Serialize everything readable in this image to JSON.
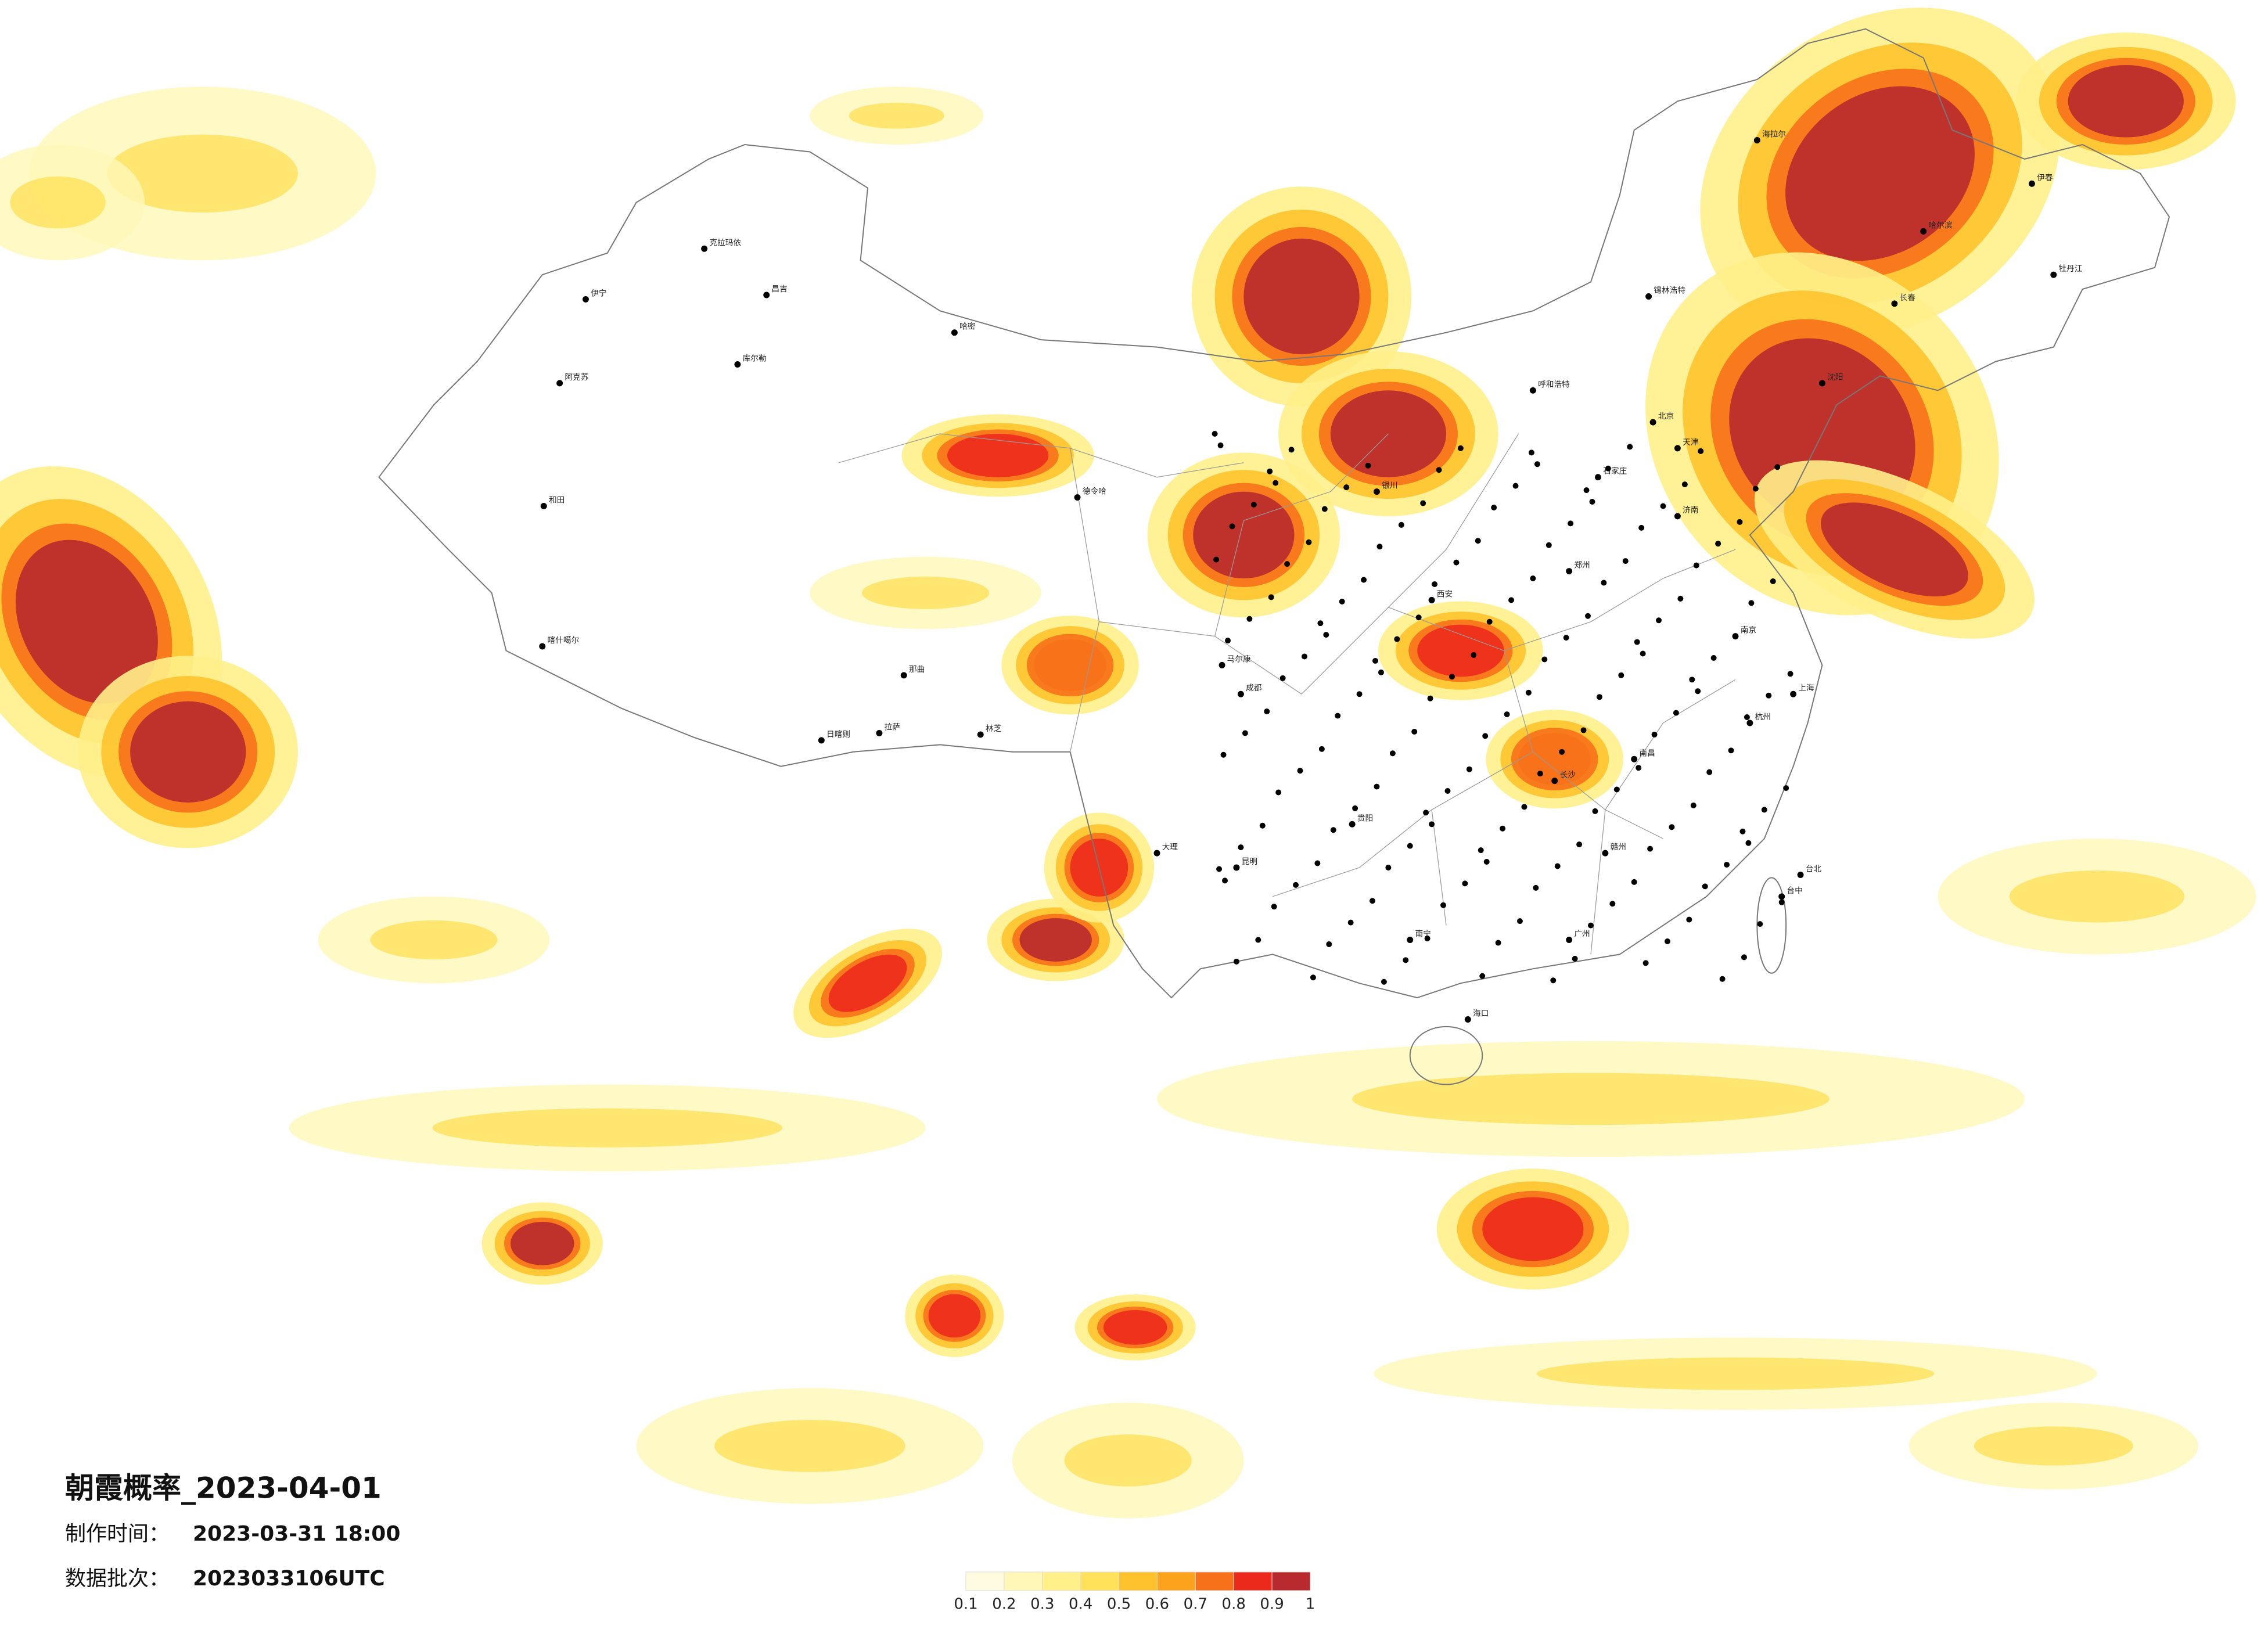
{
  "title": "朝霞概率_2023-04-01",
  "made_time": {
    "label": "制作时间：",
    "value": "2023-03-31 18:00"
  },
  "batch": {
    "label": "数据批次：",
    "value": "2023033106UTC"
  },
  "colorbar": {
    "ticks": [
      0.1,
      0.2,
      0.3,
      0.4,
      0.5,
      0.6,
      0.7,
      0.8,
      0.9,
      1
    ],
    "colors": [
      "#fffbe0",
      "#fff7b8",
      "#fff08a",
      "#ffe15a",
      "#fec32c",
      "#fca21c",
      "#f7711a",
      "#ec2a1c",
      "#b82a2e"
    ]
  },
  "cities": [
    "克拉玛依",
    "伊宁",
    "阿克苏",
    "和田",
    "喀什噶尔",
    "哈密",
    "昌吉",
    "库尔勒",
    "拉萨",
    "日喀则",
    "林芝",
    "那曲",
    "德令哈",
    "北京",
    "天津",
    "石家庄",
    "济南",
    "郑州",
    "南京",
    "上海",
    "杭州",
    "南昌",
    "长沙",
    "广州",
    "南宁",
    "贵阳",
    "昆明",
    "成都",
    "西安",
    "银川",
    "呼和浩特",
    "哈尔滨",
    "长春",
    "沈阳",
    "海口",
    "台北",
    "台中",
    "海拉尔",
    "伊春",
    "牡丹江",
    "锡林浩特",
    "马尔康",
    "大理",
    "赣州"
  ]
}
